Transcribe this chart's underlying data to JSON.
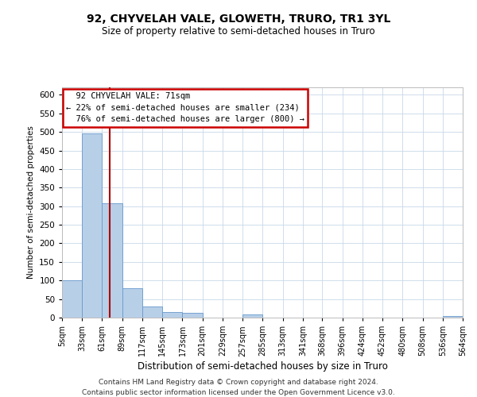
{
  "title": "92, CHYVELAH VALE, GLOWETH, TRURO, TR1 3YL",
  "subtitle": "Size of property relative to semi-detached houses in Truro",
  "xlabel": "Distribution of semi-detached houses by size in Truro",
  "ylabel": "Number of semi-detached properties",
  "property_label": "92 CHYVELAH VALE: 71sqm",
  "pct_smaller": 22,
  "pct_larger": 76,
  "n_smaller": 234,
  "n_larger": 800,
  "bin_edges": [
    5,
    33,
    61,
    89,
    117,
    145,
    173,
    201,
    229,
    257,
    285,
    313,
    341,
    368,
    396,
    424,
    452,
    480,
    508,
    536,
    564
  ],
  "bin_counts": [
    100,
    495,
    307,
    80,
    30,
    15,
    13,
    0,
    0,
    8,
    0,
    0,
    0,
    0,
    0,
    0,
    0,
    0,
    0,
    5
  ],
  "bar_color": "#b8cfe8",
  "bar_edge_color": "#6699cc",
  "vline_color": "#aa0000",
  "vline_x": 71,
  "ylim": [
    0,
    620
  ],
  "yticks": [
    0,
    50,
    100,
    150,
    200,
    250,
    300,
    350,
    400,
    450,
    500,
    550,
    600
  ],
  "footer1": "Contains HM Land Registry data © Crown copyright and database right 2024.",
  "footer2": "Contains public sector information licensed under the Open Government Licence v3.0.",
  "tick_labels": [
    "5sqm",
    "33sqm",
    "61sqm",
    "89sqm",
    "117sqm",
    "145sqm",
    "173sqm",
    "201sqm",
    "229sqm",
    "257sqm",
    "285sqm",
    "313sqm",
    "341sqm",
    "368sqm",
    "396sqm",
    "424sqm",
    "452sqm",
    "480sqm",
    "508sqm",
    "536sqm",
    "564sqm"
  ]
}
